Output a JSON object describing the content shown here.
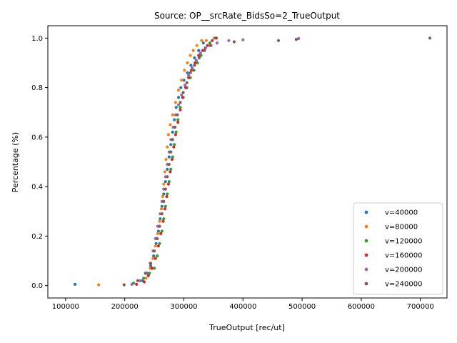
{
  "chart_data": {
    "type": "scatter",
    "title": "Source: OP__srcRate_BidsSo=2_TrueOutput",
    "xlabel": "TrueOutput [rec/ut]",
    "ylabel": "Percentage (%)",
    "xlim": [
      70000,
      745000
    ],
    "ylim": [
      -0.05,
      1.05
    ],
    "xticks": [
      100000,
      200000,
      300000,
      400000,
      500000,
      600000,
      700000
    ],
    "xtick_labels": [
      "100000",
      "200000",
      "300000",
      "400000",
      "500000",
      "600000",
      "700000"
    ],
    "yticks": [
      0.0,
      0.2,
      0.4,
      0.6,
      0.8,
      1.0
    ],
    "ytick_labels": [
      "0.0",
      "0.2",
      "0.4",
      "0.6",
      "0.8",
      "1.0"
    ],
    "grid": false,
    "legend_position": "bottom-right",
    "series": [
      {
        "name": "v=40000",
        "color": "#1f77b4",
        "x": [
          116000,
          230000,
          238000,
          244000,
          249000,
          253000,
          257000,
          260000,
          263000,
          266000,
          269000,
          272000,
          275000,
          278000,
          281000,
          284000,
          287000,
          291000,
          295000,
          300000,
          306000,
          312000,
          318000,
          325000,
          333000
        ],
        "y": [
          0.005,
          0.02,
          0.05,
          0.08,
          0.12,
          0.17,
          0.22,
          0.27,
          0.32,
          0.37,
          0.42,
          0.47,
          0.52,
          0.57,
          0.62,
          0.67,
          0.72,
          0.76,
          0.8,
          0.83,
          0.86,
          0.89,
          0.92,
          0.95,
          0.98
        ]
      },
      {
        "name": "v=80000",
        "color": "#ff7f0e",
        "x": [
          156000,
          236000,
          243000,
          248000,
          252000,
          256000,
          259000,
          262000,
          264000,
          266000,
          268000,
          270000,
          272000,
          274000,
          277000,
          281000,
          286000,
          291000,
          296000,
          301000,
          306000,
          311000,
          316000,
          322000,
          330000,
          338000
        ],
        "y": [
          0.003,
          0.03,
          0.07,
          0.11,
          0.16,
          0.21,
          0.26,
          0.31,
          0.36,
          0.41,
          0.46,
          0.51,
          0.56,
          0.61,
          0.65,
          0.69,
          0.74,
          0.79,
          0.83,
          0.87,
          0.9,
          0.93,
          0.95,
          0.97,
          0.99,
          0.99
        ]
      },
      {
        "name": "v=120000",
        "color": "#2ca02c",
        "x": [
          215000,
          232000,
          242000,
          250000,
          255000,
          259000,
          263000,
          266000,
          269000,
          272000,
          275000,
          278000,
          281000,
          284000,
          287000,
          290000,
          294000,
          299000,
          305000,
          311000,
          317000,
          323000,
          329000,
          336000,
          344000,
          352000
        ],
        "y": [
          0.01,
          0.03,
          0.05,
          0.07,
          0.12,
          0.17,
          0.22,
          0.27,
          0.32,
          0.37,
          0.42,
          0.47,
          0.52,
          0.57,
          0.62,
          0.67,
          0.72,
          0.76,
          0.8,
          0.84,
          0.87,
          0.9,
          0.93,
          0.96,
          0.98,
          1.0
        ]
      },
      {
        "name": "v=160000",
        "color": "#d62728",
        "x": [
          220000,
          233000,
          240000,
          246000,
          252000,
          257000,
          261000,
          265000,
          268000,
          271000,
          274000,
          277000,
          280000,
          283000,
          286000,
          290000,
          294000,
          298000,
          303000,
          308000,
          313000,
          319000,
          325000,
          332000,
          340000,
          348000,
          355000
        ],
        "y": [
          0.005,
          0.015,
          0.04,
          0.07,
          0.11,
          0.16,
          0.21,
          0.26,
          0.31,
          0.36,
          0.41,
          0.46,
          0.51,
          0.56,
          0.61,
          0.66,
          0.71,
          0.76,
          0.8,
          0.84,
          0.87,
          0.9,
          0.93,
          0.95,
          0.97,
          0.99,
          1.0
        ]
      },
      {
        "name": "v=200000",
        "color": "#9467bd",
        "x": [
          212000,
          226000,
          236000,
          243000,
          248000,
          252000,
          256000,
          260000,
          263000,
          266000,
          269000,
          272000,
          275000,
          278000,
          282000,
          286000,
          291000,
          296000,
          302000,
          308000,
          314000,
          321000,
          328000,
          337000,
          346000,
          356000,
          376000,
          400000,
          494000
        ],
        "y": [
          0.005,
          0.02,
          0.05,
          0.09,
          0.14,
          0.19,
          0.24,
          0.29,
          0.34,
          0.39,
          0.44,
          0.49,
          0.54,
          0.59,
          0.64,
          0.69,
          0.73,
          0.77,
          0.81,
          0.85,
          0.88,
          0.91,
          0.94,
          0.96,
          0.97,
          0.98,
          0.99,
          0.993,
          0.998
        ]
      },
      {
        "name": "v=240000",
        "color": "#8c564b",
        "x": [
          199000,
          222000,
          235000,
          244000,
          250000,
          255000,
          259000,
          263000,
          266000,
          269000,
          272000,
          275000,
          278000,
          281000,
          285000,
          289000,
          294000,
          299000,
          305000,
          311000,
          318000,
          326000,
          335000,
          345000,
          385000,
          460000,
          490000,
          716000
        ],
        "y": [
          0.003,
          0.02,
          0.05,
          0.09,
          0.14,
          0.19,
          0.24,
          0.29,
          0.34,
          0.39,
          0.44,
          0.49,
          0.54,
          0.59,
          0.64,
          0.69,
          0.74,
          0.78,
          0.82,
          0.86,
          0.89,
          0.92,
          0.95,
          0.97,
          0.985,
          0.99,
          0.995,
          1.0
        ]
      }
    ]
  }
}
